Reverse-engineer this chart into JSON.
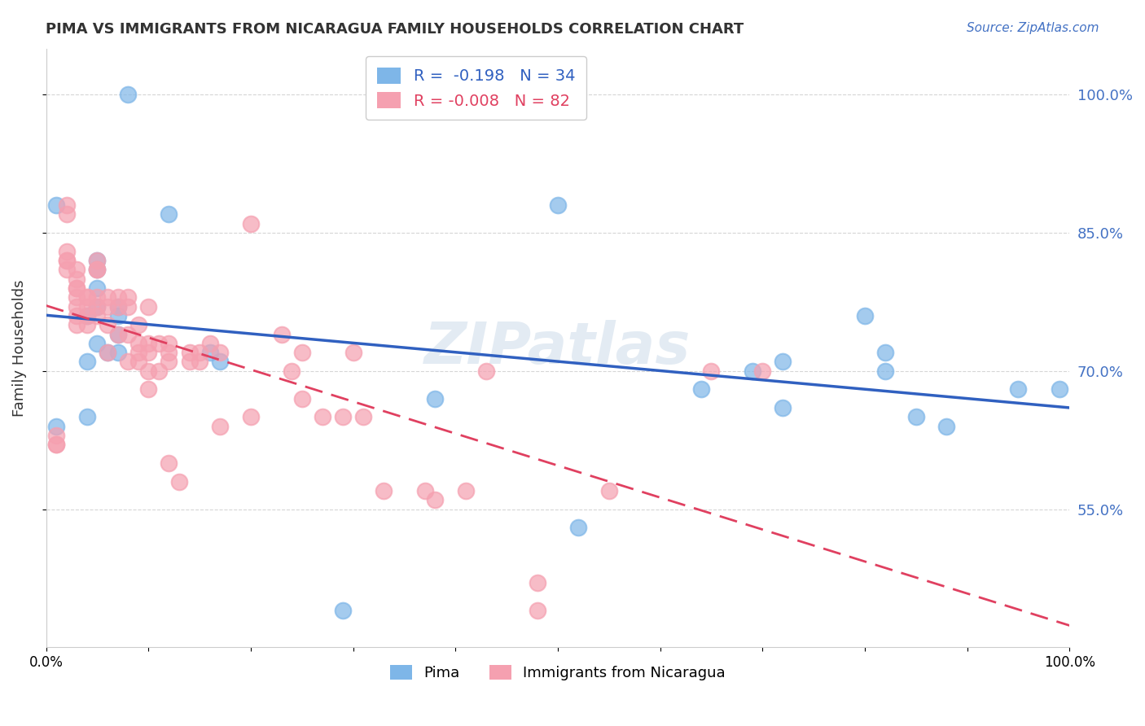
{
  "title": "PIMA VS IMMIGRANTS FROM NICARAGUA FAMILY HOUSEHOLDS CORRELATION CHART",
  "source": "Source: ZipAtlas.com",
  "xlabel": "",
  "ylabel": "Family Households",
  "xlim": [
    0.0,
    1.0
  ],
  "ylim": [
    0.4,
    1.05
  ],
  "yticks": [
    0.55,
    0.7,
    0.85,
    1.0
  ],
  "ytick_labels": [
    "55.0%",
    "70.0%",
    "85.0%",
    "100.0%"
  ],
  "xticks": [
    0.0,
    0.1,
    0.2,
    0.3,
    0.4,
    0.5,
    0.6,
    0.7,
    0.8,
    0.9,
    1.0
  ],
  "xtick_labels": [
    "0.0%",
    "",
    "",
    "",
    "",
    "",
    "",
    "",
    "",
    "",
    "100.0%"
  ],
  "legend_R_blue": "-0.198",
  "legend_N_blue": "34",
  "legend_R_pink": "-0.008",
  "legend_N_pink": "82",
  "blue_color": "#7EB6E8",
  "pink_color": "#F5A0B0",
  "trendline_blue": "#3060C0",
  "trendline_pink": "#E04060",
  "background_color": "#FFFFFF",
  "watermark": "ZIPatlas",
  "blue_points_x": [
    0.08,
    0.01,
    0.12,
    0.05,
    0.05,
    0.05,
    0.05,
    0.07,
    0.07,
    0.04,
    0.07,
    0.05,
    0.06,
    0.07,
    0.04,
    0.04,
    0.16,
    0.01,
    0.5,
    0.38,
    0.52,
    0.64,
    0.69,
    0.72,
    0.72,
    0.8,
    0.82,
    0.82,
    0.85,
    0.88,
    0.95,
    0.99,
    0.17,
    0.29
  ],
  "blue_points_y": [
    1.0,
    0.88,
    0.87,
    0.82,
    0.81,
    0.79,
    0.77,
    0.77,
    0.76,
    0.76,
    0.74,
    0.73,
    0.72,
    0.72,
    0.71,
    0.65,
    0.72,
    0.64,
    0.88,
    0.67,
    0.53,
    0.68,
    0.7,
    0.71,
    0.66,
    0.76,
    0.72,
    0.7,
    0.65,
    0.64,
    0.68,
    0.68,
    0.71,
    0.44
  ],
  "pink_points_x": [
    0.01,
    0.01,
    0.01,
    0.02,
    0.02,
    0.02,
    0.02,
    0.02,
    0.02,
    0.03,
    0.03,
    0.03,
    0.03,
    0.03,
    0.03,
    0.03,
    0.03,
    0.04,
    0.04,
    0.04,
    0.04,
    0.04,
    0.05,
    0.05,
    0.05,
    0.05,
    0.05,
    0.05,
    0.06,
    0.06,
    0.06,
    0.06,
    0.07,
    0.07,
    0.07,
    0.08,
    0.08,
    0.08,
    0.08,
    0.09,
    0.09,
    0.09,
    0.09,
    0.1,
    0.1,
    0.1,
    0.1,
    0.1,
    0.11,
    0.11,
    0.12,
    0.12,
    0.12,
    0.12,
    0.13,
    0.14,
    0.14,
    0.15,
    0.15,
    0.16,
    0.17,
    0.17,
    0.2,
    0.2,
    0.23,
    0.24,
    0.25,
    0.25,
    0.27,
    0.29,
    0.3,
    0.31,
    0.33,
    0.37,
    0.38,
    0.41,
    0.43,
    0.48,
    0.48,
    0.55,
    0.65,
    0.7
  ],
  "pink_points_y": [
    0.63,
    0.62,
    0.62,
    0.88,
    0.87,
    0.83,
    0.82,
    0.82,
    0.81,
    0.81,
    0.8,
    0.79,
    0.79,
    0.78,
    0.77,
    0.76,
    0.75,
    0.78,
    0.78,
    0.77,
    0.76,
    0.75,
    0.82,
    0.81,
    0.81,
    0.78,
    0.77,
    0.76,
    0.78,
    0.77,
    0.75,
    0.72,
    0.78,
    0.77,
    0.74,
    0.78,
    0.77,
    0.74,
    0.71,
    0.75,
    0.73,
    0.72,
    0.71,
    0.77,
    0.73,
    0.72,
    0.7,
    0.68,
    0.73,
    0.7,
    0.73,
    0.72,
    0.71,
    0.6,
    0.58,
    0.72,
    0.71,
    0.72,
    0.71,
    0.73,
    0.72,
    0.64,
    0.86,
    0.65,
    0.74,
    0.7,
    0.72,
    0.67,
    0.65,
    0.65,
    0.72,
    0.65,
    0.57,
    0.57,
    0.56,
    0.57,
    0.7,
    0.47,
    0.44,
    0.57,
    0.7,
    0.7
  ]
}
